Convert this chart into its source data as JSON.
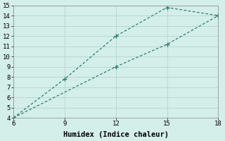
{
  "line1_x": [
    6,
    9,
    12,
    15,
    18
  ],
  "line1_y": [
    4,
    7.8,
    12.0,
    14.8,
    14.0
  ],
  "line2_x": [
    6,
    12,
    15,
    18
  ],
  "line2_y": [
    4,
    9.0,
    11.2,
    14.0
  ],
  "xlabel": "Humidex (Indice chaleur)",
  "xlim": [
    6,
    18
  ],
  "ylim": [
    4,
    15
  ],
  "xticks": [
    6,
    9,
    12,
    15,
    18
  ],
  "yticks": [
    4,
    5,
    6,
    7,
    8,
    9,
    10,
    11,
    12,
    13,
    14,
    15
  ],
  "line_color": "#2a7d6e",
  "bg_color": "#d4eeea",
  "grid_color": "#b8d8d4",
  "markersize": 3.0,
  "linewidth": 0.9,
  "font_family": "monospace",
  "xlabel_fontsize": 7.5,
  "tick_fontsize": 6.5
}
